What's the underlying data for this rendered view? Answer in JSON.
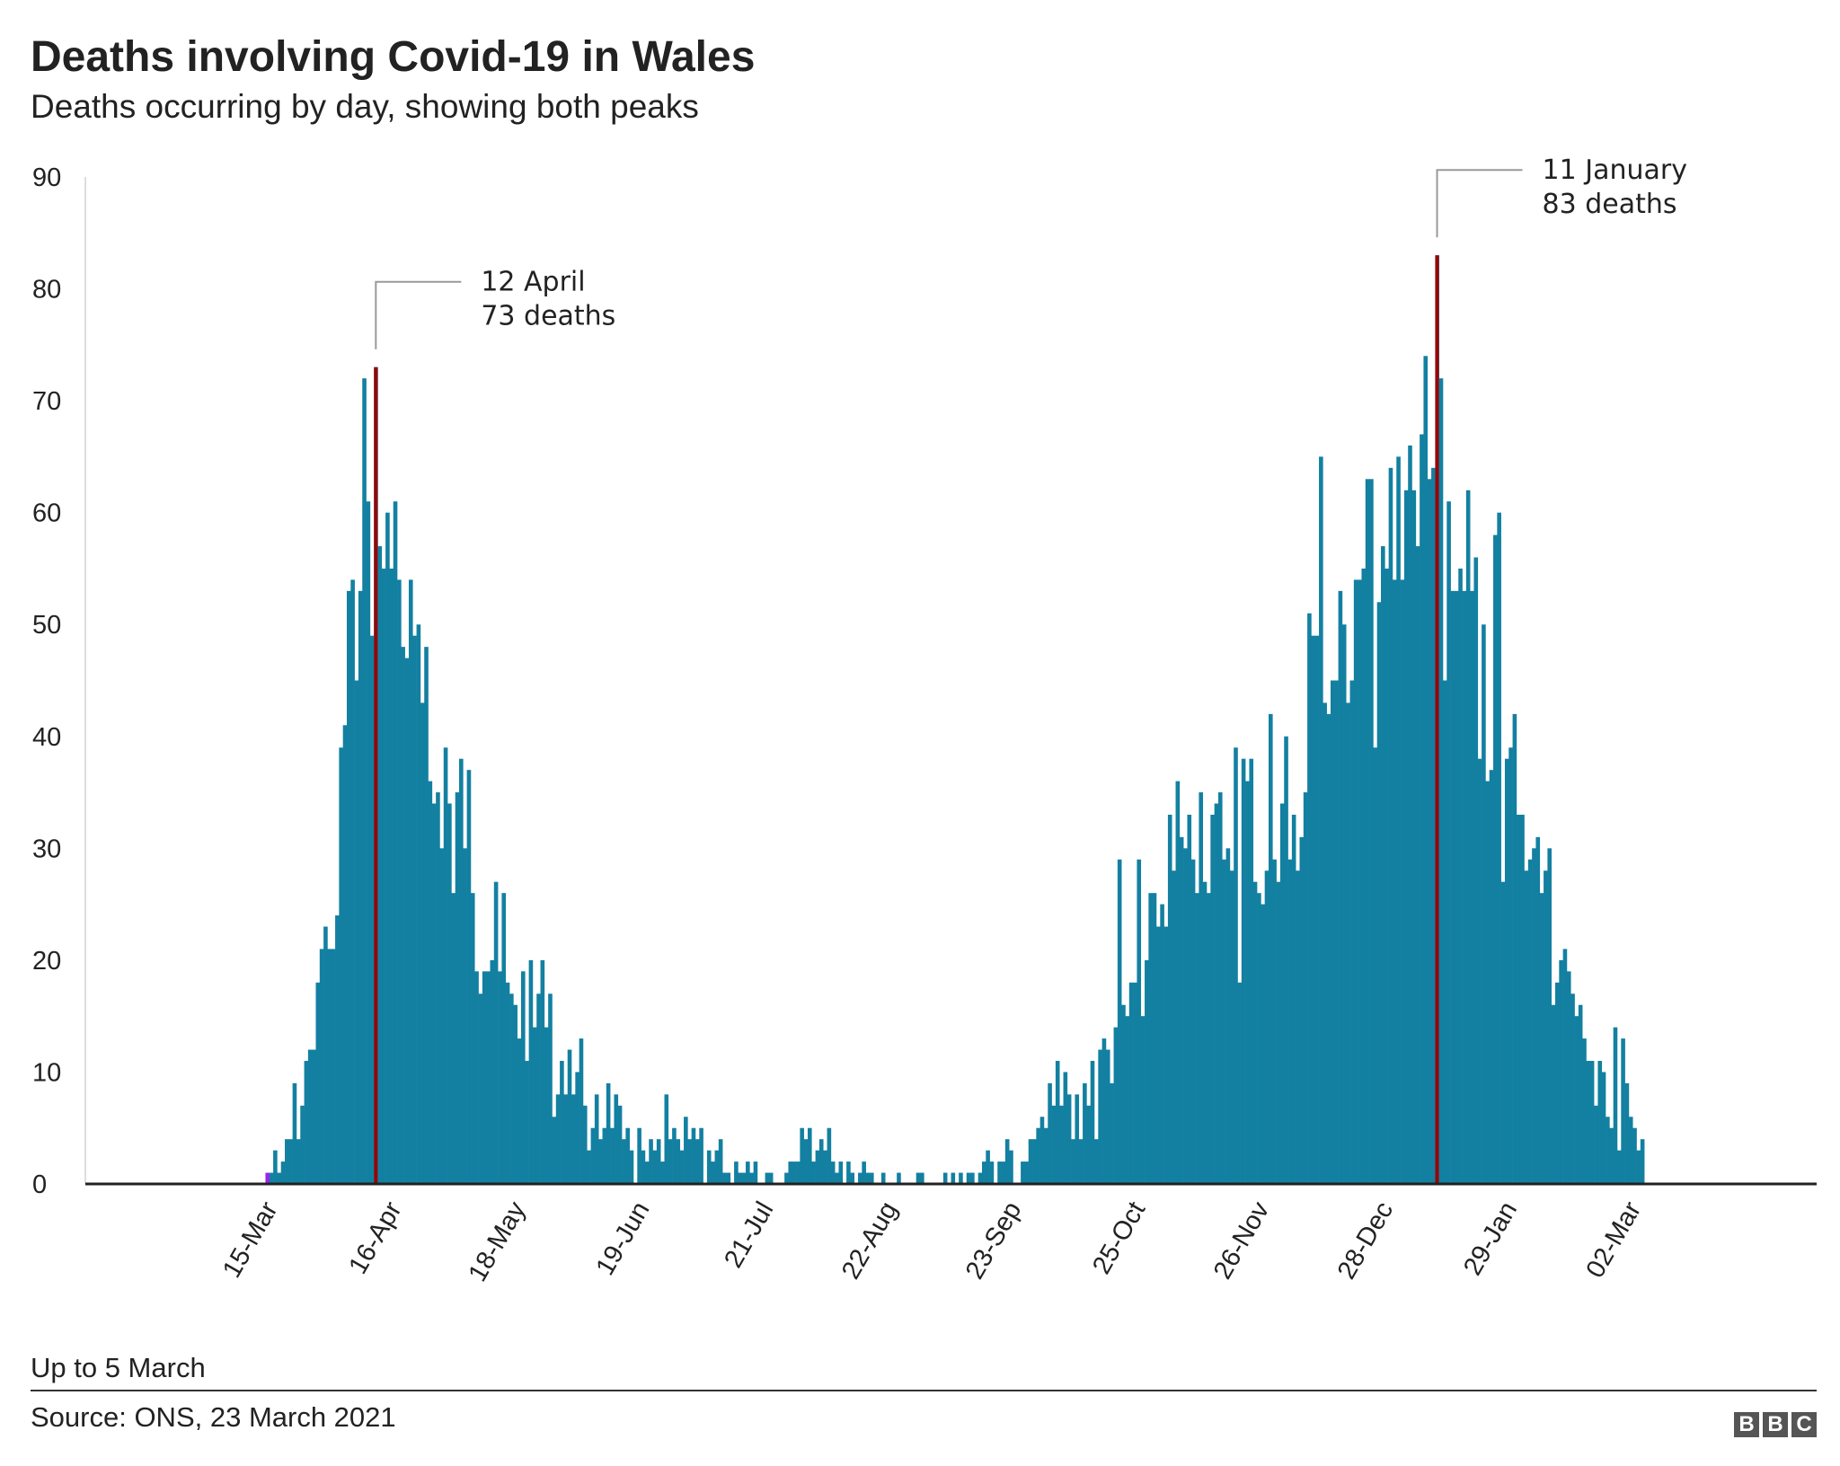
{
  "chart_data": {
    "type": "bar",
    "title": "Deaths involving Covid-19 in Wales",
    "subtitle": "Deaths occurring by day, showing both peaks",
    "xlabel": "",
    "ylabel": "",
    "start_date": "2020-03-15",
    "xlim": [
      "2020-01-28",
      "2021-04-19"
    ],
    "ylim": [
      0,
      90
    ],
    "yticks": [
      0,
      10,
      20,
      30,
      40,
      50,
      60,
      70,
      80,
      90
    ],
    "xticks": [
      {
        "date": "2020-03-15",
        "label": "15-Mar"
      },
      {
        "date": "2020-04-16",
        "label": "16-Apr"
      },
      {
        "date": "2020-05-18",
        "label": "18-May"
      },
      {
        "date": "2020-06-19",
        "label": "19-Jun"
      },
      {
        "date": "2020-07-21",
        "label": "21-Jul"
      },
      {
        "date": "2020-08-22",
        "label": "22-Aug"
      },
      {
        "date": "2020-09-23",
        "label": "23-Sep"
      },
      {
        "date": "2020-10-25",
        "label": "25-Oct"
      },
      {
        "date": "2020-11-26",
        "label": "26-Nov"
      },
      {
        "date": "2020-12-28",
        "label": "28-Dec"
      },
      {
        "date": "2021-01-29",
        "label": "29-Jan"
      },
      {
        "date": "2021-03-02",
        "label": "02-Mar"
      }
    ],
    "grid": false,
    "values": [
      1,
      1,
      3,
      1,
      2,
      4,
      4,
      9,
      4,
      7,
      11,
      12,
      12,
      18,
      21,
      23,
      21,
      21,
      24,
      39,
      41,
      53,
      54,
      45,
      53,
      72,
      61,
      49,
      73,
      57,
      55,
      60,
      55,
      61,
      54,
      48,
      47,
      54,
      49,
      50,
      43,
      48,
      36,
      34,
      35,
      30,
      39,
      34,
      26,
      35,
      38,
      30,
      37,
      26,
      19,
      17,
      19,
      19,
      20,
      27,
      19,
      26,
      18,
      17,
      16,
      13,
      19,
      11,
      20,
      14,
      17,
      20,
      14,
      17,
      6,
      8,
      11,
      8,
      12,
      8,
      10,
      13,
      7,
      3,
      5,
      8,
      4,
      5,
      9,
      5,
      8,
      7,
      4,
      5,
      3,
      0,
      5,
      3,
      2,
      4,
      3,
      4,
      2,
      8,
      4,
      5,
      4,
      3,
      6,
      4,
      5,
      4,
      5,
      0,
      3,
      2,
      3,
      4,
      1,
      1,
      0,
      2,
      1,
      1,
      2,
      1,
      2,
      0,
      0,
      1,
      1,
      0,
      0,
      0,
      1,
      2,
      2,
      2,
      5,
      4,
      5,
      2,
      3,
      4,
      3,
      5,
      2,
      1,
      2,
      0,
      2,
      1,
      0,
      1,
      2,
      1,
      1,
      0,
      0,
      1,
      0,
      0,
      0,
      1,
      0,
      0,
      0,
      0,
      1,
      1,
      0,
      0,
      0,
      0,
      0,
      1,
      0,
      1,
      0,
      1,
      0,
      1,
      1,
      0,
      1,
      2,
      3,
      2,
      0,
      2,
      2,
      4,
      3,
      0,
      0,
      2,
      2,
      4,
      4,
      5,
      6,
      5,
      9,
      7,
      11,
      7,
      10,
      8,
      4,
      8,
      4,
      9,
      7,
      11,
      4,
      12,
      13,
      12,
      9,
      14,
      29,
      16,
      15,
      18,
      18,
      29,
      15,
      20,
      26,
      26,
      23,
      25,
      23,
      33,
      28,
      36,
      31,
      30,
      33,
      29,
      26,
      35,
      27,
      26,
      33,
      34,
      35,
      29,
      30,
      28,
      39,
      18,
      38,
      36,
      38,
      27,
      26,
      25,
      28,
      42,
      29,
      27,
      34,
      40,
      29,
      33,
      28,
      31,
      35,
      51,
      49,
      49,
      65,
      43,
      42,
      45,
      45,
      53,
      50,
      43,
      45,
      54,
      54,
      55,
      63,
      63,
      39,
      52,
      57,
      55,
      64,
      54,
      65,
      54,
      62,
      66,
      62,
      57,
      67,
      74,
      63,
      64,
      83,
      72,
      45,
      61,
      53,
      53,
      55,
      53,
      62,
      53,
      56,
      38,
      50,
      36,
      37,
      58,
      60,
      27,
      38,
      39,
      42,
      33,
      33,
      28,
      29,
      30,
      31,
      26,
      28,
      30,
      16,
      18,
      20,
      21,
      19,
      17,
      15,
      16,
      13,
      11,
      11,
      7,
      11,
      10,
      6,
      5,
      14,
      3,
      13,
      9,
      6,
      5,
      3,
      4
    ],
    "annotations": [
      {
        "date": "2020-04-12",
        "value": 73,
        "line1": "12 April",
        "line2": "73 deaths"
      },
      {
        "date": "2021-01-11",
        "value": 83,
        "line1": "11 January",
        "line2": "83 deaths"
      }
    ],
    "colors": {
      "bar": "#1380A1",
      "peak": "#990000",
      "first_bar": "#a020f0",
      "axis": "#222222"
    }
  },
  "footer": {
    "note": "Up to 5 March",
    "source": "Source: ONS, 23 March 2021",
    "logo": [
      "B",
      "B",
      "C"
    ]
  }
}
